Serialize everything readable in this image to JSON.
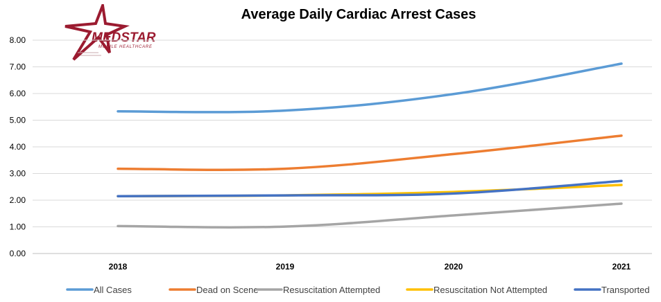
{
  "logo": {
    "text_main": "MEDSTAR",
    "text_sub": "MOBILE HEALTHCARE",
    "color": "#9b1b30"
  },
  "chart_data": {
    "type": "line",
    "title": "Average Daily Cardiac Arrest Cases",
    "xlabel": "",
    "ylabel": "",
    "categories": [
      "2018",
      "2019",
      "2020",
      "2021"
    ],
    "ylim": [
      0,
      8
    ],
    "yticks": [
      "0.00",
      "1.00",
      "2.00",
      "3.00",
      "4.00",
      "5.00",
      "6.00",
      "7.00",
      "8.00"
    ],
    "grid": true,
    "legend_position": "bottom",
    "series": [
      {
        "name": "All Cases",
        "color": "#5b9bd5",
        "values": [
          5.33,
          5.36,
          5.98,
          7.12
        ]
      },
      {
        "name": "Dead on Scene",
        "color": "#ed7d31",
        "values": [
          3.18,
          3.18,
          3.73,
          4.42
        ]
      },
      {
        "name": "Resuscitation Attempted",
        "color": "#a5a5a5",
        "values": [
          1.03,
          1.01,
          1.43,
          1.87
        ]
      },
      {
        "name": "Resuscitation Not Attempted",
        "color": "#ffc000",
        "values": [
          2.15,
          2.18,
          2.31,
          2.57
        ]
      },
      {
        "name": "Transported",
        "color": "#4472c4",
        "values": [
          2.15,
          2.18,
          2.25,
          2.72
        ]
      }
    ]
  }
}
